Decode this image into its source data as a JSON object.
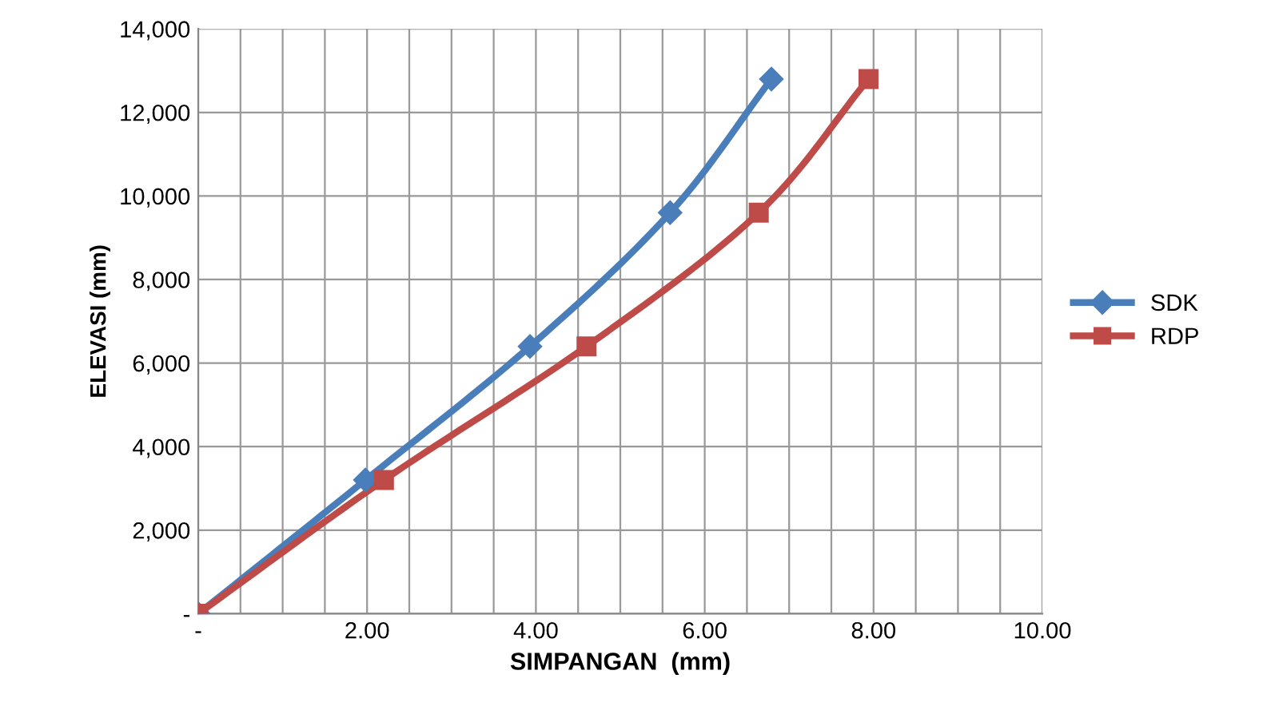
{
  "chart_data": {
    "type": "line",
    "xlabel": "SIMPANGAN  (mm)",
    "ylabel": "ELEVASI (mm)",
    "series": [
      {
        "name": "SDK",
        "color": "#4a7ebb",
        "marker": "diamond",
        "x": [
          0,
          1.98,
          3.93,
          5.59,
          6.79
        ],
        "values": [
          0,
          3200,
          6400,
          9600,
          12800
        ]
      },
      {
        "name": "RDP",
        "color": "#be4b48",
        "marker": "square",
        "x": [
          0,
          2.2,
          4.6,
          6.64,
          7.94
        ],
        "values": [
          0,
          3200,
          6400,
          9600,
          12800
        ]
      }
    ],
    "xlim": [
      0,
      10
    ],
    "xticks": [
      {
        "value": 0,
        "label": "-"
      },
      {
        "value": 0.5,
        "label": null
      },
      {
        "value": 1,
        "label": null
      },
      {
        "value": 1.5,
        "label": null
      },
      {
        "value": 2,
        "label": "2.00"
      },
      {
        "value": 2.5,
        "label": null
      },
      {
        "value": 3,
        "label": null
      },
      {
        "value": 3.5,
        "label": null
      },
      {
        "value": 4,
        "label": "4.00"
      },
      {
        "value": 4.5,
        "label": null
      },
      {
        "value": 5,
        "label": null
      },
      {
        "value": 5.5,
        "label": null
      },
      {
        "value": 6,
        "label": "6.00"
      },
      {
        "value": 6.5,
        "label": null
      },
      {
        "value": 7,
        "label": null
      },
      {
        "value": 7.5,
        "label": null
      },
      {
        "value": 8,
        "label": "8.00"
      },
      {
        "value": 8.5,
        "label": null
      },
      {
        "value": 9,
        "label": null
      },
      {
        "value": 9.5,
        "label": null
      },
      {
        "value": 10,
        "label": "10.00"
      }
    ],
    "ylim": [
      0,
      14000
    ],
    "yticks": [
      {
        "value": 0,
        "label": "-"
      },
      {
        "value": 2000,
        "label": "2,000"
      },
      {
        "value": 4000,
        "label": "4,000"
      },
      {
        "value": 6000,
        "label": "6,000"
      },
      {
        "value": 8000,
        "label": "8,000"
      },
      {
        "value": 10000,
        "label": "10,000"
      },
      {
        "value": 12000,
        "label": "12,000"
      },
      {
        "value": 14000,
        "label": "14,000"
      }
    ],
    "grid": true,
    "legend": "right",
    "line_style": "solid"
  }
}
